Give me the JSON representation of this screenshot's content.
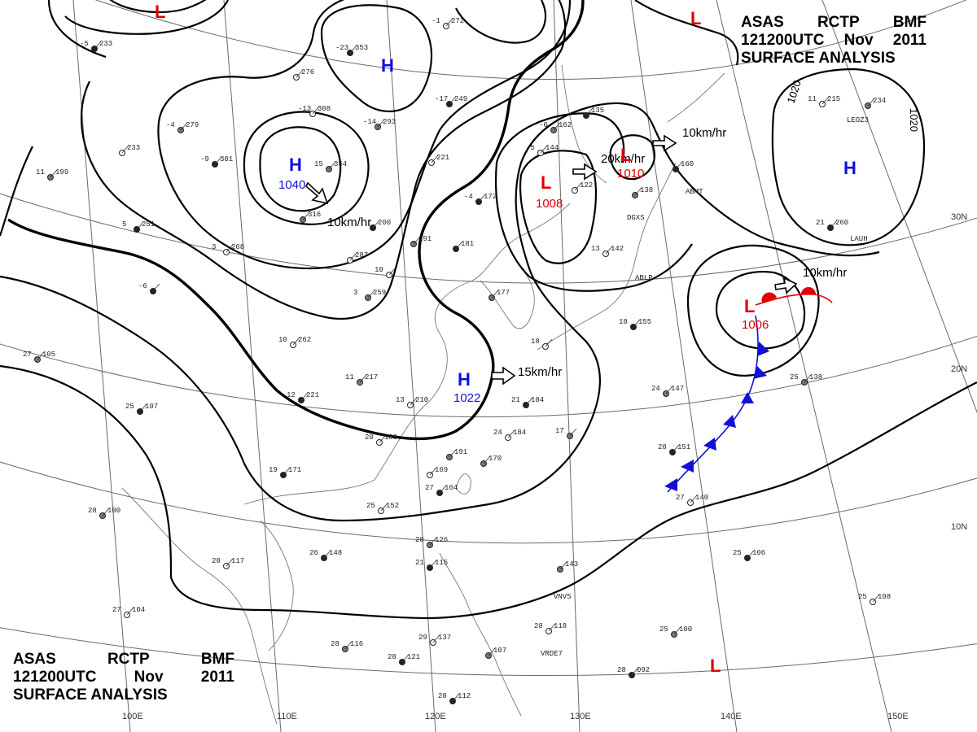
{
  "title_top": {
    "line1": [
      "ASAS",
      "RCTP",
      "BMF"
    ],
    "line2": [
      "121200UTC",
      "Nov",
      "2011"
    ],
    "line3": "SURFACE  ANALYSIS"
  },
  "title_bottom": {
    "line1": [
      "ASAS",
      "RCTP",
      "BMF"
    ],
    "line2": [
      "121200UTC",
      "Nov",
      "2011"
    ],
    "line3": "SURFACE  ANALYSIS"
  },
  "colors": {
    "high": "#1010d8",
    "low": "#e00000",
    "cold_front": "#1010d8",
    "warm_front": "#e00000",
    "isobar": "#000000",
    "grid": "#555555",
    "coast": "#666666"
  },
  "systems": [
    {
      "type": "H",
      "pressure": "1040",
      "motion": "10km/hr"
    },
    {
      "type": "H",
      "pressure": "1022",
      "motion": "15km/hr"
    },
    {
      "type": "H",
      "pressure": "",
      "motion": ""
    },
    {
      "type": "H",
      "pressure": "",
      "motion": ""
    },
    {
      "type": "L",
      "pressure": "1008",
      "motion": "20km/hr"
    },
    {
      "type": "L",
      "pressure": "1010",
      "motion": "10km/hr"
    },
    {
      "type": "L",
      "pressure": "1006",
      "motion": "10km/hr"
    },
    {
      "type": "L",
      "pressure": "",
      "motion": ""
    },
    {
      "type": "L",
      "pressure": "",
      "motion": ""
    }
  ],
  "isobar_labels": [
    "1020",
    "1020"
  ],
  "latitude_labels": [
    "30N",
    "20N",
    "10N"
  ],
  "longitude_labels": [
    "100E",
    "110E",
    "120E",
    "130E",
    "140E",
    "150E"
  ],
  "stations": [
    {
      "id": "s01",
      "t": "-23",
      "p": "353"
    },
    {
      "id": "s02",
      "t": "-13",
      "p": "308"
    },
    {
      "id": "s03",
      "t": "-14",
      "p": "293"
    },
    {
      "id": "s04",
      "t": "-17",
      "p": "249"
    },
    {
      "id": "s05",
      "t": "-1",
      "p": "272"
    },
    {
      "id": "s06",
      "t": "-4",
      "p": "279"
    },
    {
      "id": "s07",
      "t": "-5",
      "p": "233"
    },
    {
      "id": "s08",
      "t": "",
      "p": "276"
    },
    {
      "id": "s09",
      "t": "15",
      "p": "354"
    },
    {
      "id": "s10",
      "t": "-9",
      "p": "301"
    },
    {
      "id": "s11",
      "t": "",
      "p": "233"
    },
    {
      "id": "s12",
      "t": "11",
      "p": "199"
    },
    {
      "id": "s13",
      "t": "5",
      "p": "251"
    },
    {
      "id": "s14",
      "t": "3",
      "p": "268"
    },
    {
      "id": "s15",
      "t": "",
      "p": "316"
    },
    {
      "id": "s16",
      "t": "",
      "p": "200"
    },
    {
      "id": "s17",
      "t": "",
      "p": "287"
    },
    {
      "id": "s18",
      "t": "",
      "p": "191"
    },
    {
      "id": "s19",
      "t": "",
      "p": "181"
    },
    {
      "id": "s20",
      "t": "10",
      "p": ""
    },
    {
      "id": "s21",
      "t": "3",
      "p": "259"
    },
    {
      "id": "s22",
      "t": "-6",
      "p": ""
    },
    {
      "id": "s23",
      "t": "10",
      "p": "262"
    },
    {
      "id": "s24",
      "t": "11",
      "p": "217"
    },
    {
      "id": "s25",
      "t": "12",
      "p": "221"
    },
    {
      "id": "s26",
      "t": "13",
      "p": "210"
    },
    {
      "id": "s27",
      "t": "27",
      "p": "105"
    },
    {
      "id": "s28",
      "t": "25",
      "p": "107"
    },
    {
      "id": "s29",
      "t": "20",
      "p": "189"
    },
    {
      "id": "s30",
      "t": "",
      "p": "191"
    },
    {
      "id": "s31",
      "t": "19",
      "p": "171"
    },
    {
      "id": "s32",
      "t": "",
      "p": "169"
    },
    {
      "id": "s33",
      "t": "",
      "p": "170"
    },
    {
      "id": "s34",
      "t": "27",
      "p": "164"
    },
    {
      "id": "s35",
      "t": "25",
      "p": "152"
    },
    {
      "id": "s36",
      "t": "28",
      "p": "100"
    },
    {
      "id": "s37",
      "t": "26",
      "p": "148"
    },
    {
      "id": "s38",
      "t": "28",
      "p": "117"
    },
    {
      "id": "s39",
      "t": "28",
      "p": "126"
    },
    {
      "id": "s40",
      "t": "21",
      "p": "115"
    },
    {
      "id": "s41",
      "t": "27",
      "p": "104"
    },
    {
      "id": "s42",
      "t": "28",
      "p": "116"
    },
    {
      "id": "s43",
      "t": "28",
      "p": "121"
    },
    {
      "id": "s44",
      "t": "29",
      "p": "137"
    },
    {
      "id": "s45",
      "t": "",
      "p": "107"
    },
    {
      "id": "s46",
      "t": "28",
      "p": "112"
    },
    {
      "id": "s47",
      "t": "28",
      "p": "118"
    },
    {
      "id": "s48",
      "t": "",
      "p": "143"
    },
    {
      "id": "s49",
      "t": "21",
      "p": "184"
    },
    {
      "id": "s50",
      "t": "24",
      "p": "184"
    },
    {
      "id": "s51",
      "t": "17",
      "p": ""
    },
    {
      "id": "s52",
      "t": "-4",
      "p": "172"
    },
    {
      "id": "s53",
      "t": "-5",
      "p": "144"
    },
    {
      "id": "s54",
      "t": "-6",
      "p": "162"
    },
    {
      "id": "s55",
      "t": "",
      "p": "135"
    },
    {
      "id": "s56",
      "t": "",
      "p": "122"
    },
    {
      "id": "s57",
      "t": "",
      "p": "138"
    },
    {
      "id": "s58",
      "t": "",
      "p": "160"
    },
    {
      "id": "s59",
      "t": "13",
      "p": "142"
    },
    {
      "id": "s60",
      "t": "",
      "p": "177"
    },
    {
      "id": "s61",
      "t": "18",
      "p": "155"
    },
    {
      "id": "s62",
      "t": "18",
      "p": ""
    },
    {
      "id": "s63",
      "t": "24",
      "p": "147"
    },
    {
      "id": "s64",
      "t": "28",
      "p": "151"
    },
    {
      "id": "s65",
      "t": "27",
      "p": "140"
    },
    {
      "id": "s66",
      "t": "25",
      "p": "138"
    },
    {
      "id": "s67",
      "t": "25",
      "p": "106"
    },
    {
      "id": "s68",
      "t": "25",
      "p": "108"
    },
    {
      "id": "s69",
      "t": "25",
      "p": "100"
    },
    {
      "id": "s70",
      "t": "28",
      "p": "092"
    },
    {
      "id": "s71",
      "t": "11",
      "p": "215"
    },
    {
      "id": "s72",
      "t": "",
      "p": "234"
    },
    {
      "id": "s73",
      "t": "21",
      "p": "260"
    },
    {
      "id": "s74",
      "t": "",
      "p": "221"
    }
  ],
  "station_ids": [
    "ABLP",
    "ABMT",
    "DGXS",
    "VNVS",
    "VRDE7",
    "LEOZ3",
    "LAUH"
  ]
}
